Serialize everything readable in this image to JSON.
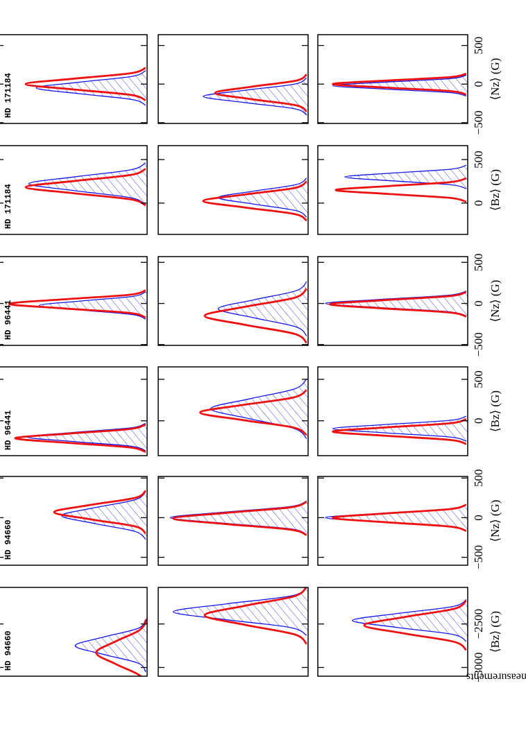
{
  "ylabel": "No. of measurements",
  "chart_data": [
    {
      "type": "line",
      "title": "HD 94660",
      "xlabel": "⟨Bz⟩ (G)",
      "xlim": [
        -3100,
        -2080
      ],
      "ylim": [
        0,
        1
      ],
      "xticks": [
        {
          "value": -3000,
          "label": "−3000"
        },
        {
          "value": -2500,
          "label": "−2500"
        }
      ],
      "rows": [
        {
          "series": [
            {
              "color": "#1414e6",
              "x": [
                -3050,
                -2950,
                -2850,
                -2750,
                -2650,
                -2550,
                -2450
              ],
              "values": [
                0.01,
                0.06,
                0.29,
                0.48,
                0.29,
                0.06,
                0.01
              ]
            },
            {
              "color": "#ee1111",
              "x": [
                -3220,
                -3090,
                -2960,
                -2830,
                -2700,
                -2570,
                -2440
              ],
              "values": [
                0,
                0.05,
                0.21,
                0.34,
                0.21,
                0.05,
                0
              ]
            }
          ]
        },
        {
          "series": [
            {
              "color": "#1414e6",
              "x": [
                -2630,
                -2540,
                -2450,
                -2360,
                -2270,
                -2180,
                -2090
              ],
              "values": [
                0.01,
                0.12,
                0.55,
                0.9,
                0.55,
                0.12,
                0.01
              ]
            },
            {
              "color": "#ee1111",
              "x": [
                -2730,
                -2620,
                -2510,
                -2400,
                -2290,
                -2180,
                -2070
              ],
              "values": [
                0.01,
                0.09,
                0.42,
                0.69,
                0.42,
                0.09,
                0.01
              ]
            }
          ]
        },
        {
          "series": [
            {
              "color": "#1414e6",
              "x": [
                -2700,
                -2620,
                -2540,
                -2460,
                -2380,
                -2300,
                -2220
              ],
              "values": [
                0.01,
                0.1,
                0.47,
                0.77,
                0.47,
                0.1,
                0.01
              ]
            },
            {
              "color": "#ee1111",
              "x": [
                -2800,
                -2705,
                -2610,
                -2515,
                -2420,
                -2325,
                -2230
              ],
              "values": [
                0.01,
                0.09,
                0.42,
                0.69,
                0.42,
                0.09,
                0.01
              ]
            }
          ]
        }
      ]
    },
    {
      "type": "line",
      "title": "HD 94660",
      "xlabel": "⟨Nz⟩ (G)",
      "xlim": [
        -600,
        520
      ],
      "ylim": [
        0,
        1
      ],
      "xticks": [
        {
          "value": -500,
          "label": "−500"
        },
        0,
        500
      ],
      "rows": [
        {
          "series": [
            {
              "color": "#1414e6",
              "x": [
                -274,
                -174,
                -74,
                26,
                126,
                226,
                326
              ],
              "values": [
                0.01,
                0.08,
                0.35,
                0.57,
                0.35,
                0.08,
                0.01
              ]
            },
            {
              "color": "#ee1111",
              "x": [
                -200,
                -110,
                -20,
                70,
                160,
                250,
                340
              ],
              "values": [
                0.01,
                0.08,
                0.38,
                0.62,
                0.38,
                0.08,
                0.01
              ]
            }
          ]
        },
        {
          "series": [
            {
              "color": "#1414e6",
              "x": [
                -210,
                -140,
                -70,
                0,
                70,
                140,
                210
              ],
              "values": [
                0.01,
                0.12,
                0.56,
                0.92,
                0.56,
                0.12,
                0.01
              ]
            },
            {
              "color": "#ee1111",
              "x": [
                -220,
                -150,
                -80,
                -10,
                60,
                130,
                200
              ],
              "values": [
                0.01,
                0.12,
                0.55,
                0.9,
                0.55,
                0.12,
                0.01
              ]
            }
          ]
        },
        {
          "series": [
            {
              "color": "#1414e6",
              "x": [
                -165,
                -110,
                -55,
                0,
                55,
                110,
                165
              ],
              "values": [
                0.01,
                0.13,
                0.58,
                0.95,
                0.58,
                0.13,
                0.01
              ]
            },
            {
              "color": "#ee1111",
              "x": [
                -167,
                -112,
                -57,
                -2,
                53,
                108,
                163
              ],
              "values": [
                0.01,
                0.12,
                0.55,
                0.9,
                0.55,
                0.12,
                0.01
              ]
            }
          ]
        }
      ]
    },
    {
      "type": "line",
      "title": "HD 96441",
      "xlabel": "⟨Bz⟩ (G)",
      "xlim": [
        -420,
        650
      ],
      "ylim": [
        0,
        1
      ],
      "xticks": [
        0,
        500
      ],
      "rows": [
        {
          "series": [
            {
              "color": "#1414e6",
              "x": [
                -360,
                -305,
                -250,
                -195,
                -140,
                -85,
                -30
              ],
              "values": [
                0.01,
                0.11,
                0.49,
                0.8,
                0.49,
                0.11,
                0.01
              ]
            },
            {
              "color": "#ee1111",
              "x": [
                -375,
                -320,
                -265,
                -210,
                -155,
                -100,
                -45
              ],
              "values": [
                0.01,
                0.12,
                0.53,
                0.88,
                0.53,
                0.12,
                0.01
              ]
            }
          ]
        },
        {
          "series": [
            {
              "color": "#1414e6",
              "x": [
                -215,
                -95,
                25,
                145,
                265,
                385,
                505
              ],
              "values": [
                0.01,
                0.09,
                0.39,
                0.65,
                0.39,
                0.09,
                0.01
              ]
            },
            {
              "color": "#ee1111",
              "x": [
                -170,
                -80,
                10,
                100,
                190,
                280,
                370
              ],
              "values": [
                0.01,
                0.1,
                0.44,
                0.72,
                0.44,
                0.1,
                0.01
              ]
            }
          ]
        },
        {
          "series": [
            {
              "color": "#1414e6",
              "x": [
                -245,
                -195,
                -145,
                -95,
                -45,
                5,
                55
              ],
              "values": [
                0.01,
                0.12,
                0.55,
                0.9,
                0.55,
                0.12,
                0.01
              ]
            },
            {
              "color": "#ee1111",
              "x": [
                -280,
                -230,
                -180,
                -130,
                -80,
                -30,
                20
              ],
              "values": [
                0.01,
                0.12,
                0.55,
                0.9,
                0.55,
                0.12,
                0.01
              ]
            }
          ]
        }
      ]
    },
    {
      "type": "line",
      "title": "HD 96441",
      "xlabel": "⟨Nz⟩ (G)",
      "xlim": [
        -510,
        570
      ],
      "ylim": [
        0,
        1
      ],
      "xticks": [
        {
          "value": -500,
          "label": "−500"
        },
        0,
        500
      ],
      "rows": [
        {
          "series": [
            {
              "color": "#1414e6",
              "x": [
                -190,
                -135,
                -80,
                -25,
                30,
                85,
                140
              ],
              "values": [
                0.01,
                0.1,
                0.44,
                0.72,
                0.44,
                0.1,
                0.01
              ]
            },
            {
              "color": "#ee1111",
              "x": [
                -170,
                -115,
                -60,
                -5,
                50,
                105,
                160
              ],
              "values": [
                0.01,
                0.12,
                0.56,
                0.92,
                0.56,
                0.12,
                0.01
              ]
            }
          ]
        },
        {
          "series": [
            {
              "color": "#1414e6",
              "x": [
                -395,
                -285,
                -175,
                -65,
                45,
                155,
                265
              ],
              "values": [
                0.01,
                0.08,
                0.36,
                0.6,
                0.36,
                0.08,
                0.01
              ]
            },
            {
              "color": "#ee1111",
              "x": [
                -480,
                -370,
                -260,
                -150,
                -40,
                70,
                180
              ],
              "values": [
                0.01,
                0.09,
                0.42,
                0.69,
                0.42,
                0.09,
                0.01
              ]
            }
          ]
        },
        {
          "series": [
            {
              "color": "#1414e6",
              "x": [
                -150,
                -100,
                -50,
                0,
                50,
                100,
                150
              ],
              "values": [
                0.01,
                0.13,
                0.58,
                0.95,
                0.58,
                0.13,
                0.01
              ]
            },
            {
              "color": "#ee1111",
              "x": [
                -160,
                -110,
                -60,
                -10,
                40,
                90,
                140
              ],
              "values": [
                0.01,
                0.12,
                0.56,
                0.92,
                0.56,
                0.12,
                0.01
              ]
            }
          ]
        }
      ]
    },
    {
      "type": "line",
      "title": "HD 171184",
      "xlabel": "⟨Bz⟩ (G)",
      "xlim": [
        -360,
        660
      ],
      "ylim": [
        0,
        1
      ],
      "xticks": [
        0,
        500
      ],
      "rows": [
        {
          "series": [
            {
              "color": "#1414e6",
              "x": [
                -18,
                62,
                142,
                222,
                302,
                382,
                462
              ],
              "values": [
                0.01,
                0.11,
                0.48,
                0.79,
                0.48,
                0.11,
                0.01
              ]
            },
            {
              "color": "#ee1111",
              "x": [
                -27,
                43,
                113,
                183,
                253,
                323,
                393
              ],
              "values": [
                0.01,
                0.11,
                0.49,
                0.81,
                0.49,
                0.11,
                0.01
              ]
            }
          ]
        },
        {
          "series": [
            {
              "color": "#1414e6",
              "x": [
                -162,
                -87,
                -12,
                63,
                138,
                213,
                288
              ],
              "values": [
                0.01,
                0.08,
                0.36,
                0.6,
                0.36,
                0.08,
                0.01
              ]
            },
            {
              "color": "#ee1111",
              "x": [
                -201,
                -126,
                -51,
                24,
                99,
                174,
                249
              ],
              "values": [
                0.01,
                0.09,
                0.42,
                0.7,
                0.42,
                0.09,
                0.01
              ]
            }
          ]
        },
        {
          "series": [
            {
              "color": "#1414e6",
              "x": [
                165,
                210,
                255,
                300,
                345,
                390,
                435
              ],
              "values": [
                0.01,
                0.11,
                0.5,
                0.82,
                0.5,
                0.11,
                0.01
              ]
            },
            {
              "color": "#ee1111",
              "x": [
                15,
                60,
                105,
                150,
                195,
                240,
                285
              ],
              "values": [
                0.01,
                0.12,
                0.53,
                0.88,
                0.53,
                0.12,
                0.01
              ]
            }
          ]
        }
      ]
    },
    {
      "type": "line",
      "title": "HD 171184",
      "xlabel": "⟨Nz⟩ (G)",
      "xlim": [
        -510,
        640
      ],
      "ylim": [
        0,
        1
      ],
      "xticks": [
        {
          "value": -500,
          "label": "−500"
        },
        0,
        500
      ],
      "rows": [
        {
          "series": [
            {
              "color": "#1414e6",
              "x": [
                -275,
                -200,
                -125,
                -50,
                25,
                100,
                175
              ],
              "values": [
                0.01,
                0.1,
                0.45,
                0.74,
                0.45,
                0.1,
                0.01
              ]
            },
            {
              "color": "#ee1111",
              "x": [
                -210,
                -140,
                -70,
                0,
                70,
                140,
                210
              ],
              "values": [
                0.01,
                0.11,
                0.49,
                0.81,
                0.49,
                0.11,
                0.01
              ]
            }
          ]
        },
        {
          "series": [
            {
              "color": "#1414e6",
              "x": [
                -400,
                -320,
                -240,
                -160,
                -80,
                0,
                80
              ],
              "values": [
                0.01,
                0.09,
                0.42,
                0.7,
                0.42,
                0.09,
                0.01
              ]
            },
            {
              "color": "#ee1111",
              "x": [
                -355,
                -275,
                -195,
                -115,
                -35,
                45,
                125
              ],
              "values": [
                0.01,
                0.08,
                0.38,
                0.62,
                0.38,
                0.08,
                0.01
              ]
            }
          ]
        },
        {
          "series": [
            {
              "color": "#1414e6",
              "x": [
                -155,
                -110,
                -65,
                -20,
                25,
                70,
                115
              ],
              "values": [
                0.01,
                0.12,
                0.55,
                0.9,
                0.55,
                0.12,
                0.01
              ]
            },
            {
              "color": "#ee1111",
              "x": [
                -135,
                -90,
                -45,
                0,
                45,
                90,
                135
              ],
              "values": [
                0.01,
                0.12,
                0.55,
                0.9,
                0.55,
                0.12,
                0.01
              ]
            }
          ]
        }
      ]
    }
  ]
}
